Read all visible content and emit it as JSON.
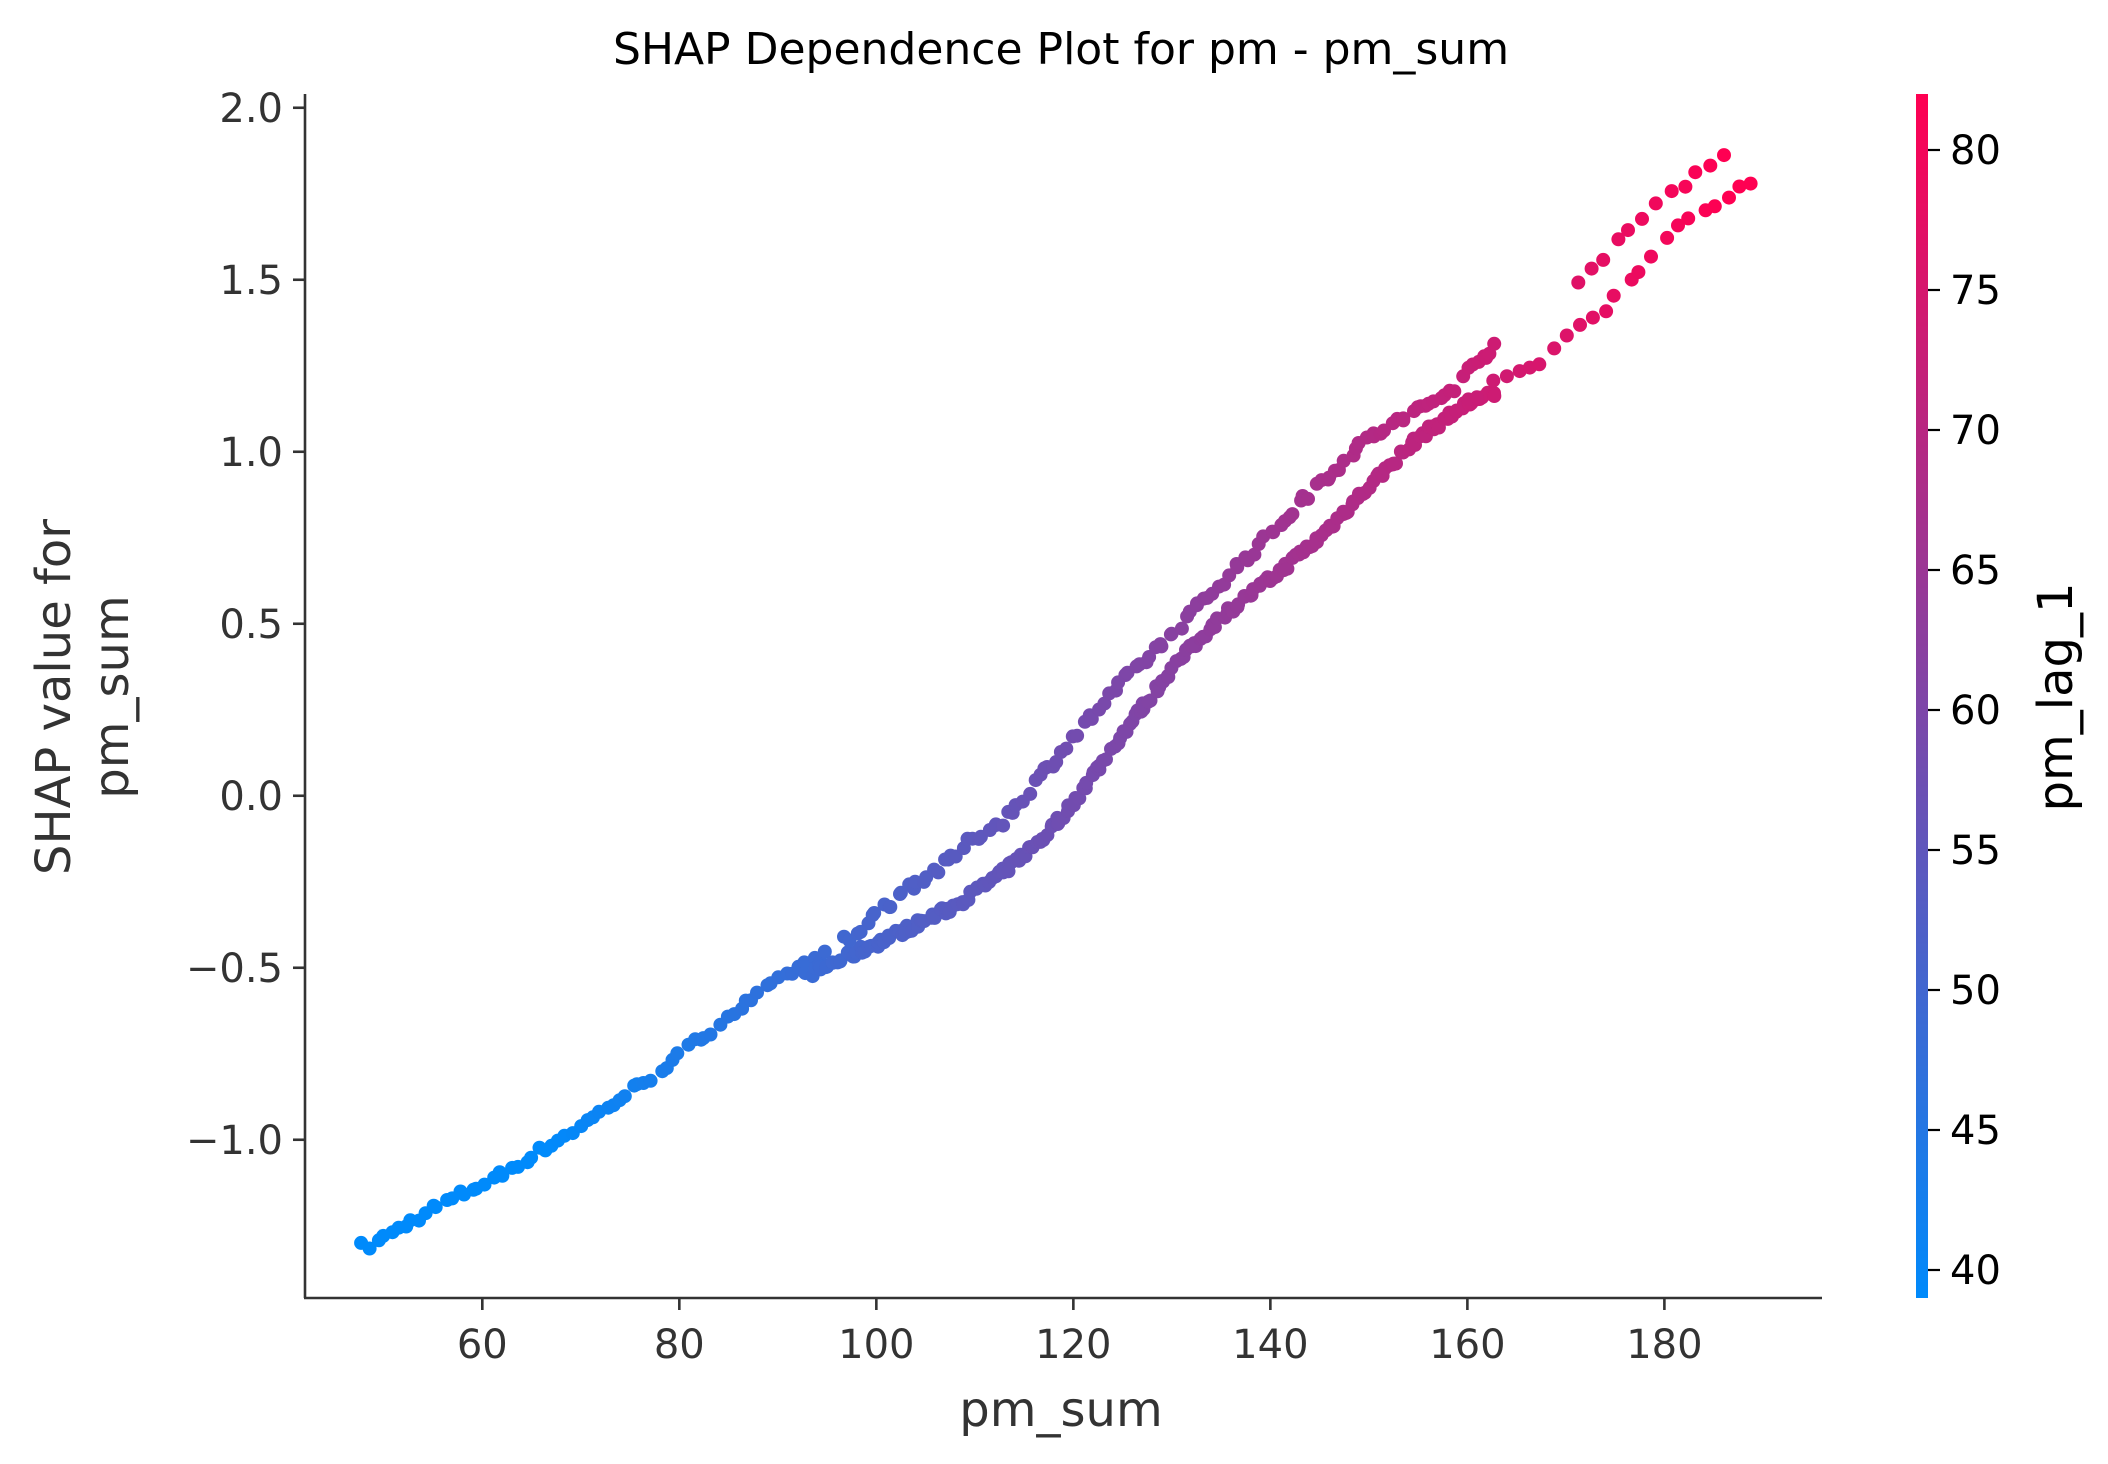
{
  "chart_data": {
    "type": "scatter",
    "title": "SHAP Dependence Plot for pm - pm_sum",
    "xlabel": "pm_sum",
    "ylabel_lines": [
      "SHAP value for",
      "pm_sum"
    ],
    "xlim": [
      42,
      196
    ],
    "ylim": [
      -1.46,
      2.04
    ],
    "xticks": [
      60,
      80,
      100,
      120,
      140,
      160,
      180
    ],
    "xtick_labels": [
      "60",
      "80",
      "100",
      "120",
      "140",
      "160",
      "180"
    ],
    "yticks": [
      -1.0,
      -0.5,
      0.0,
      0.5,
      1.0,
      1.5,
      2.0
    ],
    "ytick_labels": [
      "−1.0",
      "−0.5",
      "0.0",
      "0.5",
      "1.0",
      "1.5",
      "2.0"
    ],
    "colorbar": {
      "label": "pm_lag_1",
      "range": [
        39,
        82
      ],
      "ticks": [
        40,
        45,
        50,
        55,
        60,
        65,
        70,
        75,
        80
      ],
      "tick_labels": [
        "40",
        "45",
        "50",
        "55",
        "60",
        "65",
        "70",
        "75",
        "80"
      ],
      "color_low": "#008afb",
      "color_high": "#ff0052"
    },
    "grid": false,
    "legend": "colorbar-right",
    "series_curves": [
      {
        "name": "",
        "x_range": [
          48,
          95
        ],
        "points": [
          [
            48.5,
            -1.31
          ],
          [
            55,
            -1.2
          ],
          [
            62,
            -1.1
          ],
          [
            70,
            -0.96
          ],
          [
            78,
            -0.8
          ],
          [
            85,
            -0.64
          ],
          [
            92,
            -0.5
          ],
          [
            95,
            -0.46
          ]
        ],
        "n": 70,
        "noise": 0.012
      },
      {
        "name": "",
        "x_range": [
          93,
          163
        ],
        "points": [
          [
            93,
            -0.52
          ],
          [
            100,
            -0.43
          ],
          [
            108,
            -0.32
          ],
          [
            113,
            -0.22
          ],
          [
            117,
            -0.12
          ],
          [
            120,
            -0.02
          ],
          [
            125,
            0.18
          ],
          [
            130,
            0.37
          ],
          [
            135,
            0.52
          ],
          [
            140,
            0.63
          ],
          [
            145,
            0.75
          ],
          [
            150,
            0.9
          ],
          [
            155,
            1.04
          ],
          [
            160,
            1.14
          ],
          [
            163,
            1.17
          ]
        ],
        "n": 240,
        "noise": 0.012
      },
      {
        "name": "",
        "x_range": [
          97,
          163
        ],
        "points": [
          [
            97,
            -0.42
          ],
          [
            103,
            -0.27
          ],
          [
            107,
            -0.2
          ],
          [
            110,
            -0.12
          ],
          [
            113,
            -0.07
          ],
          [
            120,
            0.17
          ],
          [
            125,
            0.33
          ],
          [
            130,
            0.47
          ],
          [
            135,
            0.62
          ],
          [
            140,
            0.76
          ],
          [
            145,
            0.91
          ],
          [
            150,
            1.04
          ],
          [
            155,
            1.12
          ],
          [
            158,
            1.17
          ],
          [
            163,
            1.32
          ]
        ],
        "n": 130,
        "noise": 0.015
      },
      {
        "name": "",
        "x_range": [
          160,
          189
        ],
        "points": [
          [
            160,
            1.16
          ],
          [
            164,
            1.21
          ],
          [
            167,
            1.25
          ],
          [
            171,
            1.36
          ],
          [
            174,
            1.42
          ],
          [
            177,
            1.52
          ],
          [
            181,
            1.64
          ],
          [
            184,
            1.7
          ],
          [
            187,
            1.76
          ],
          [
            189,
            1.78
          ]
        ],
        "n": 24,
        "noise": 0.015
      },
      {
        "name": "",
        "x_range": [
          171,
          186
        ],
        "points": [
          [
            171,
            1.5
          ],
          [
            173,
            1.55
          ],
          [
            177,
            1.66
          ],
          [
            181,
            1.75
          ],
          [
            183,
            1.81
          ],
          [
            186,
            1.87
          ]
        ],
        "n": 12,
        "noise": 0.015
      }
    ]
  }
}
